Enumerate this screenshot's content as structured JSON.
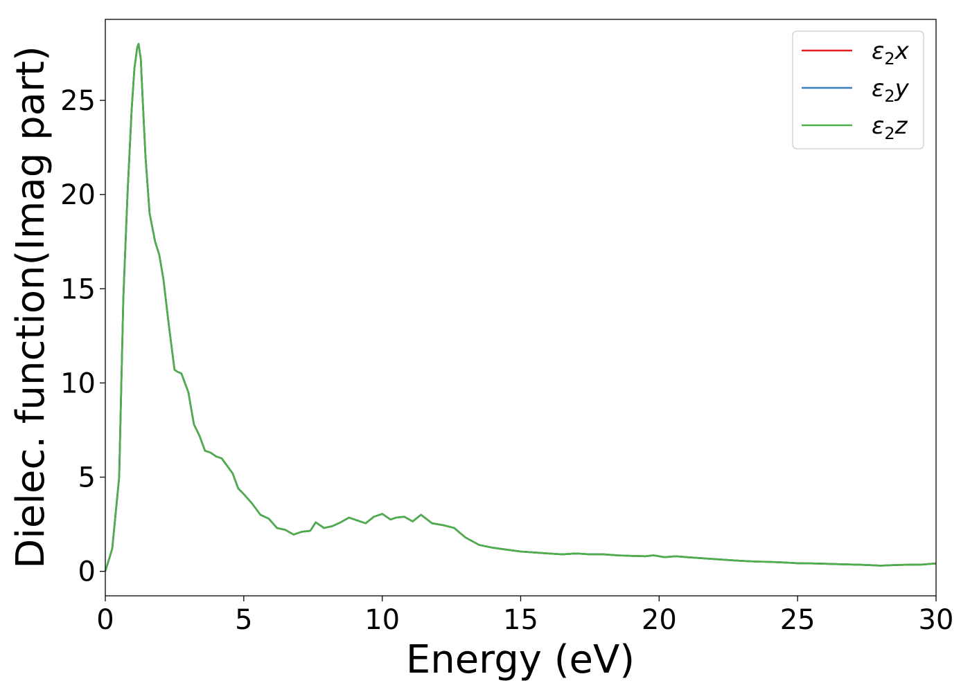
{
  "chart_data": {
    "type": "line",
    "title": "",
    "xlabel": "Energy (eV)",
    "ylabel": "Dielec. function(Imag part)",
    "xlim": [
      0,
      30
    ],
    "ylim": [
      -1.3,
      29.3
    ],
    "xticks": [
      0,
      5,
      10,
      15,
      20,
      25,
      30
    ],
    "yticks": [
      0,
      5,
      10,
      15,
      20,
      25
    ],
    "grid": false,
    "legend_position": "top-right",
    "x": [
      0,
      0.25,
      0.5,
      0.65,
      0.8,
      0.95,
      1.05,
      1.15,
      1.2,
      1.28,
      1.35,
      1.45,
      1.6,
      1.8,
      1.95,
      2.1,
      2.3,
      2.5,
      2.6,
      2.75,
      3.0,
      3.2,
      3.4,
      3.6,
      3.8,
      4.0,
      4.2,
      4.4,
      4.6,
      4.8,
      5.0,
      5.3,
      5.6,
      5.9,
      6.2,
      6.5,
      6.8,
      7.1,
      7.4,
      7.6,
      7.9,
      8.2,
      8.5,
      8.8,
      9.1,
      9.4,
      9.7,
      10.0,
      10.3,
      10.5,
      10.8,
      11.1,
      11.4,
      11.8,
      12.2,
      12.6,
      13.0,
      13.5,
      14.0,
      14.5,
      15.0,
      15.5,
      16.0,
      16.5,
      17.0,
      17.5,
      18.0,
      18.5,
      19.0,
      19.5,
      19.8,
      20.2,
      20.6,
      21.0,
      21.5,
      22.0,
      22.5,
      23.0,
      23.5,
      24.0,
      24.5,
      25.0,
      25.5,
      26.0,
      26.5,
      27.0,
      27.5,
      28.0,
      28.5,
      29.0,
      29.5,
      30.0
    ],
    "series": [
      {
        "name": "ε₂x",
        "color": "#e41a1c",
        "values": [
          0,
          1.2,
          5.0,
          14.5,
          20.0,
          24.5,
          26.7,
          27.8,
          28.0,
          27.2,
          25.0,
          22.0,
          19.0,
          17.5,
          16.8,
          15.5,
          13.0,
          10.7,
          10.6,
          10.5,
          9.5,
          7.8,
          7.2,
          6.4,
          6.3,
          6.1,
          6.0,
          5.6,
          5.2,
          4.4,
          4.1,
          3.6,
          3.0,
          2.8,
          2.3,
          2.2,
          1.95,
          2.1,
          2.15,
          2.6,
          2.3,
          2.4,
          2.6,
          2.85,
          2.7,
          2.55,
          2.9,
          3.05,
          2.75,
          2.85,
          2.9,
          2.65,
          3.0,
          2.55,
          2.45,
          2.3,
          1.8,
          1.4,
          1.25,
          1.15,
          1.05,
          1.0,
          0.95,
          0.9,
          0.95,
          0.9,
          0.9,
          0.85,
          0.82,
          0.8,
          0.85,
          0.75,
          0.8,
          0.75,
          0.7,
          0.65,
          0.6,
          0.55,
          0.52,
          0.5,
          0.47,
          0.43,
          0.42,
          0.4,
          0.38,
          0.36,
          0.34,
          0.3,
          0.33,
          0.35,
          0.36,
          0.42
        ]
      },
      {
        "name": "ε₂y",
        "color": "#377eb8",
        "values": [
          0,
          1.2,
          5.0,
          14.5,
          20.0,
          24.5,
          26.7,
          27.8,
          28.0,
          27.2,
          25.0,
          22.0,
          19.0,
          17.5,
          16.8,
          15.5,
          13.0,
          10.7,
          10.6,
          10.5,
          9.5,
          7.8,
          7.2,
          6.4,
          6.3,
          6.1,
          6.0,
          5.6,
          5.2,
          4.4,
          4.1,
          3.6,
          3.0,
          2.8,
          2.3,
          2.2,
          1.95,
          2.1,
          2.15,
          2.6,
          2.3,
          2.4,
          2.6,
          2.85,
          2.7,
          2.55,
          2.9,
          3.05,
          2.75,
          2.85,
          2.9,
          2.65,
          3.0,
          2.55,
          2.45,
          2.3,
          1.8,
          1.4,
          1.25,
          1.15,
          1.05,
          1.0,
          0.95,
          0.9,
          0.95,
          0.9,
          0.9,
          0.85,
          0.82,
          0.8,
          0.85,
          0.75,
          0.8,
          0.75,
          0.7,
          0.65,
          0.6,
          0.55,
          0.52,
          0.5,
          0.47,
          0.43,
          0.42,
          0.4,
          0.38,
          0.36,
          0.34,
          0.3,
          0.33,
          0.35,
          0.36,
          0.42
        ]
      },
      {
        "name": "ε₂z",
        "color": "#4daf4a",
        "values": [
          0,
          1.2,
          5.0,
          14.5,
          20.0,
          24.5,
          26.7,
          27.8,
          28.0,
          27.2,
          25.0,
          22.0,
          19.0,
          17.5,
          16.8,
          15.5,
          13.0,
          10.7,
          10.6,
          10.5,
          9.5,
          7.8,
          7.2,
          6.4,
          6.3,
          6.1,
          6.0,
          5.6,
          5.2,
          4.4,
          4.1,
          3.6,
          3.0,
          2.8,
          2.3,
          2.2,
          1.95,
          2.1,
          2.15,
          2.6,
          2.3,
          2.4,
          2.6,
          2.85,
          2.7,
          2.55,
          2.9,
          3.05,
          2.75,
          2.85,
          2.9,
          2.65,
          3.0,
          2.55,
          2.45,
          2.3,
          1.8,
          1.4,
          1.25,
          1.15,
          1.05,
          1.0,
          0.95,
          0.9,
          0.95,
          0.9,
          0.9,
          0.85,
          0.82,
          0.8,
          0.85,
          0.75,
          0.8,
          0.75,
          0.7,
          0.65,
          0.6,
          0.55,
          0.52,
          0.5,
          0.47,
          0.43,
          0.42,
          0.4,
          0.38,
          0.36,
          0.34,
          0.3,
          0.33,
          0.35,
          0.36,
          0.42
        ]
      }
    ],
    "legend": [
      {
        "symbol": "ε",
        "subscript": "2",
        "axis": "x",
        "color": "#e41a1c"
      },
      {
        "symbol": "ε",
        "subscript": "2",
        "axis": "y",
        "color": "#377eb8"
      },
      {
        "symbol": "ε",
        "subscript": "2",
        "axis": "z",
        "color": "#4daf4a"
      }
    ]
  }
}
